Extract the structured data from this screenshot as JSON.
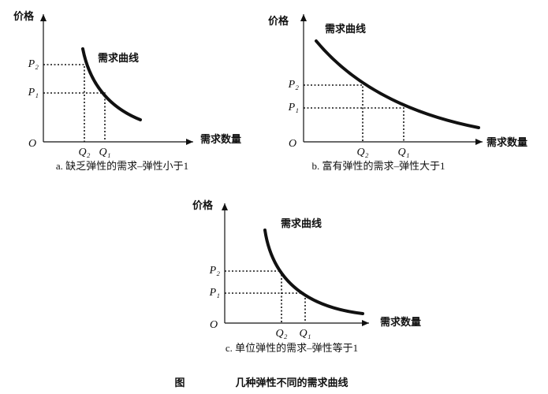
{
  "panels": [
    {
      "y_axis_label": "价格",
      "x_axis_label": "需求数量",
      "curve_label": "需求曲线",
      "origin": "O",
      "p_labels": [
        "P₂",
        "P₁"
      ],
      "q_labels": [
        "Q₂",
        "Q₁"
      ],
      "caption": "a. 缺乏弹性的需求–弹性小于1"
    },
    {
      "y_axis_label": "价格",
      "x_axis_label": "需求数量",
      "curve_label": "需求曲线",
      "origin": "O",
      "p_labels": [
        "P₂",
        "P₁"
      ],
      "q_labels": [
        "Q₂",
        "Q₁"
      ],
      "caption": "b. 富有弹性的需求–弹性大于1"
    },
    {
      "y_axis_label": "价格",
      "x_axis_label": "需求数量",
      "curve_label": "需求曲线",
      "origin": "O",
      "p_labels": [
        "P₂",
        "P₁"
      ],
      "q_labels": [
        "Q₂",
        "Q₁"
      ],
      "caption": "c. 单位弹性的需求–弹性等于1"
    }
  ],
  "figure": {
    "label": "图",
    "title": "几种弹性不同的需求曲线"
  }
}
